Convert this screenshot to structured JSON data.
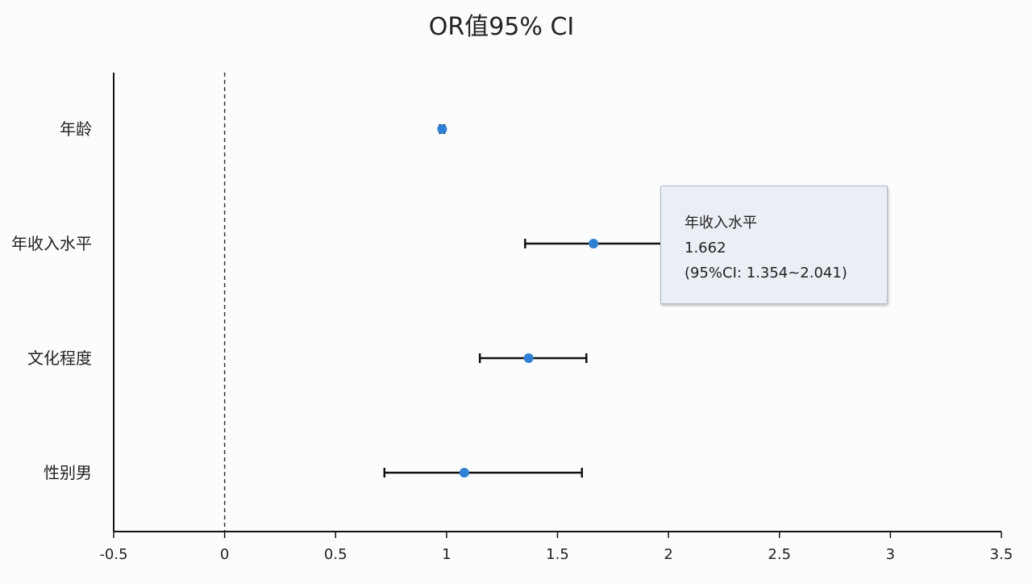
{
  "chart_data": {
    "type": "forest",
    "title": "OR值95% CI",
    "xlabel": "",
    "ylabel": "",
    "xlim": [
      -0.5,
      3.5
    ],
    "x_ticks": [
      "-0.5",
      "0",
      "0.5",
      "1",
      "1.5",
      "2",
      "2.5",
      "3",
      "3.5"
    ],
    "x_tick_values": [
      -0.5,
      0,
      0.5,
      1,
      1.5,
      2,
      2.5,
      3,
      3.5
    ],
    "reference_line": 0,
    "grid": false,
    "categories": [
      "年龄",
      "年收入水平",
      "文化程度",
      "性别男"
    ],
    "values": [
      0.98,
      1.662,
      1.37,
      1.08
    ],
    "ci_lower": [
      0.97,
      1.354,
      1.15,
      0.72
    ],
    "ci_upper": [
      0.99,
      2.041,
      1.63,
      1.61
    ],
    "point_color": "#2f80d4",
    "line_color": "#111111"
  },
  "tooltip": {
    "name": "年收入水平",
    "value": "1.662",
    "ci": "(95%CI: 1.354~2.041)"
  }
}
